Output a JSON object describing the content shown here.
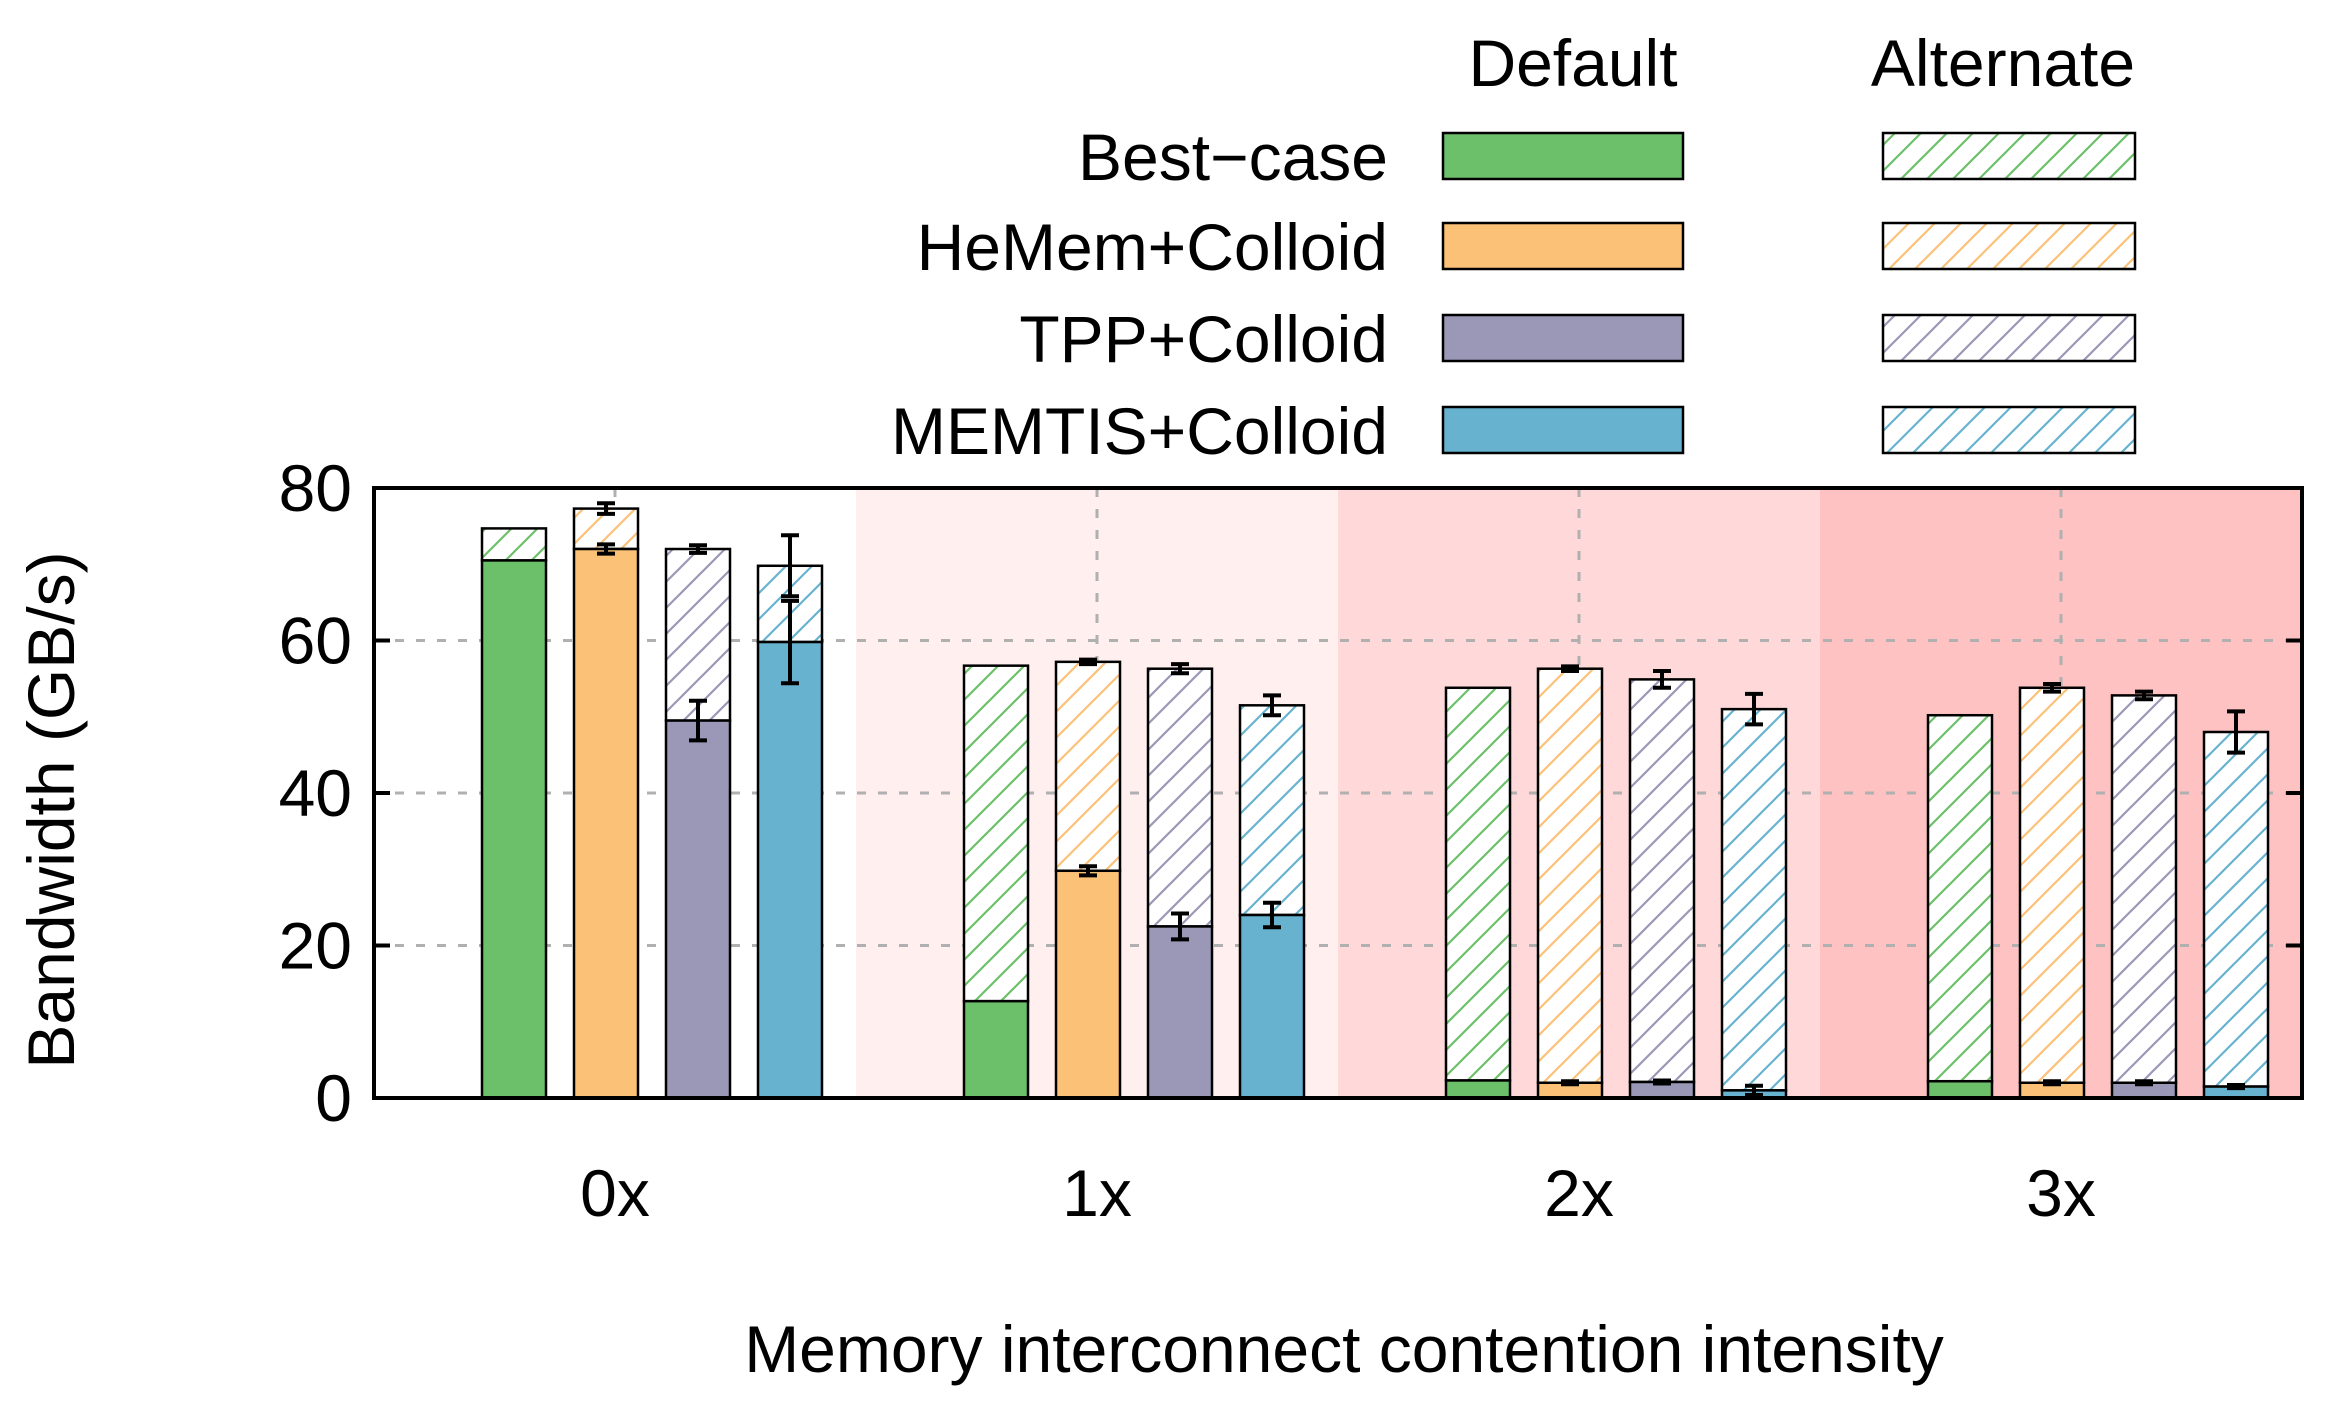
{
  "chart_data": {
    "type": "bar",
    "stacked": true,
    "xlabel": "Memory interconnect contention intensity",
    "ylabel": "Bandwidth (GB/s)",
    "ylim": [
      0,
      80
    ],
    "yticks": [
      0,
      20,
      40,
      60,
      80
    ],
    "grid": "dashed",
    "legend_placement": "top-right",
    "legend_columns": [
      "Default",
      "Alternate"
    ],
    "categories": [
      "0x",
      "1x",
      "2x",
      "3x"
    ],
    "band_colors": [
      "#ffffff",
      "#fff0ef",
      "#ffd9d9",
      "#ffc2c2"
    ],
    "series": [
      {
        "name": "Best−case",
        "color": "#6cc06a",
        "default": [
          70.5,
          12.7,
          2.3,
          2.2
        ],
        "alternate": [
          4.2,
          44.0,
          51.5,
          48.0
        ],
        "total_err": [
          null,
          null,
          null,
          null
        ],
        "default_err": [
          null,
          null,
          null,
          null
        ]
      },
      {
        "name": "HeMem+Colloid",
        "color": "#fbc177",
        "default": [
          72.0,
          29.8,
          2.0,
          2.0
        ],
        "alternate": [
          5.3,
          27.4,
          54.3,
          51.8
        ],
        "total_err": [
          0.7,
          0.3,
          0.3,
          0.5
        ],
        "default_err": [
          0.6,
          0.6,
          0.2,
          0.2
        ]
      },
      {
        "name": "TPP+Colloid",
        "color": "#9b97b7",
        "default": [
          49.5,
          22.5,
          2.1,
          2.0
        ],
        "alternate": [
          22.5,
          33.8,
          52.8,
          50.8
        ],
        "total_err": [
          0.5,
          0.6,
          1.1,
          0.5
        ],
        "default_err": [
          2.6,
          1.7,
          0.2,
          0.2
        ]
      },
      {
        "name": "MEMTIS+Colloid",
        "color": "#67b3cf",
        "default": [
          59.8,
          24.0,
          1.0,
          1.5
        ],
        "alternate": [
          10.0,
          27.5,
          50.0,
          46.5
        ],
        "total_err": [
          4.0,
          1.3,
          2.0,
          2.7
        ],
        "default_err": [
          5.4,
          1.6,
          0.6,
          0.2
        ]
      }
    ]
  }
}
